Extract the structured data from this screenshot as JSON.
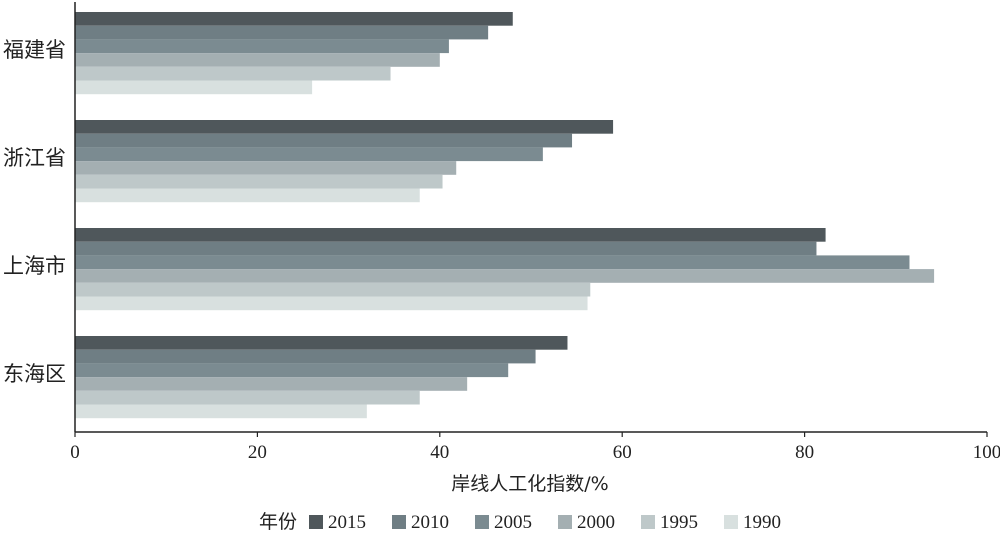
{
  "chart_data": {
    "type": "bar",
    "orientation": "horizontal",
    "categories": [
      "福建省",
      "浙江省",
      "上海市",
      "东海区"
    ],
    "series": [
      {
        "name": "2015",
        "color": "#4f575b",
        "values": [
          48.0,
          59.0,
          82.3,
          54.0
        ]
      },
      {
        "name": "2010",
        "color": "#6f7e84",
        "values": [
          45.3,
          54.5,
          81.3,
          50.5
        ]
      },
      {
        "name": "2005",
        "color": "#7b8b91",
        "values": [
          41.0,
          51.3,
          91.5,
          47.5
        ]
      },
      {
        "name": "2000",
        "color": "#a4afb2",
        "values": [
          40.0,
          41.8,
          94.2,
          43.0
        ]
      },
      {
        "name": "1995",
        "color": "#bec8c9",
        "values": [
          34.6,
          40.3,
          56.5,
          37.8
        ]
      },
      {
        "name": "1990",
        "color": "#d8e0df",
        "values": [
          26.0,
          37.8,
          56.2,
          32.0
        ]
      }
    ],
    "xlabel": "岸线人工化指数/%",
    "ylabel": "",
    "xlim": [
      0,
      100
    ],
    "xticks": [
      "0",
      "20",
      "40",
      "60",
      "80",
      "100"
    ],
    "grid": false,
    "legend": {
      "title": "年份",
      "position": "bottom"
    }
  }
}
